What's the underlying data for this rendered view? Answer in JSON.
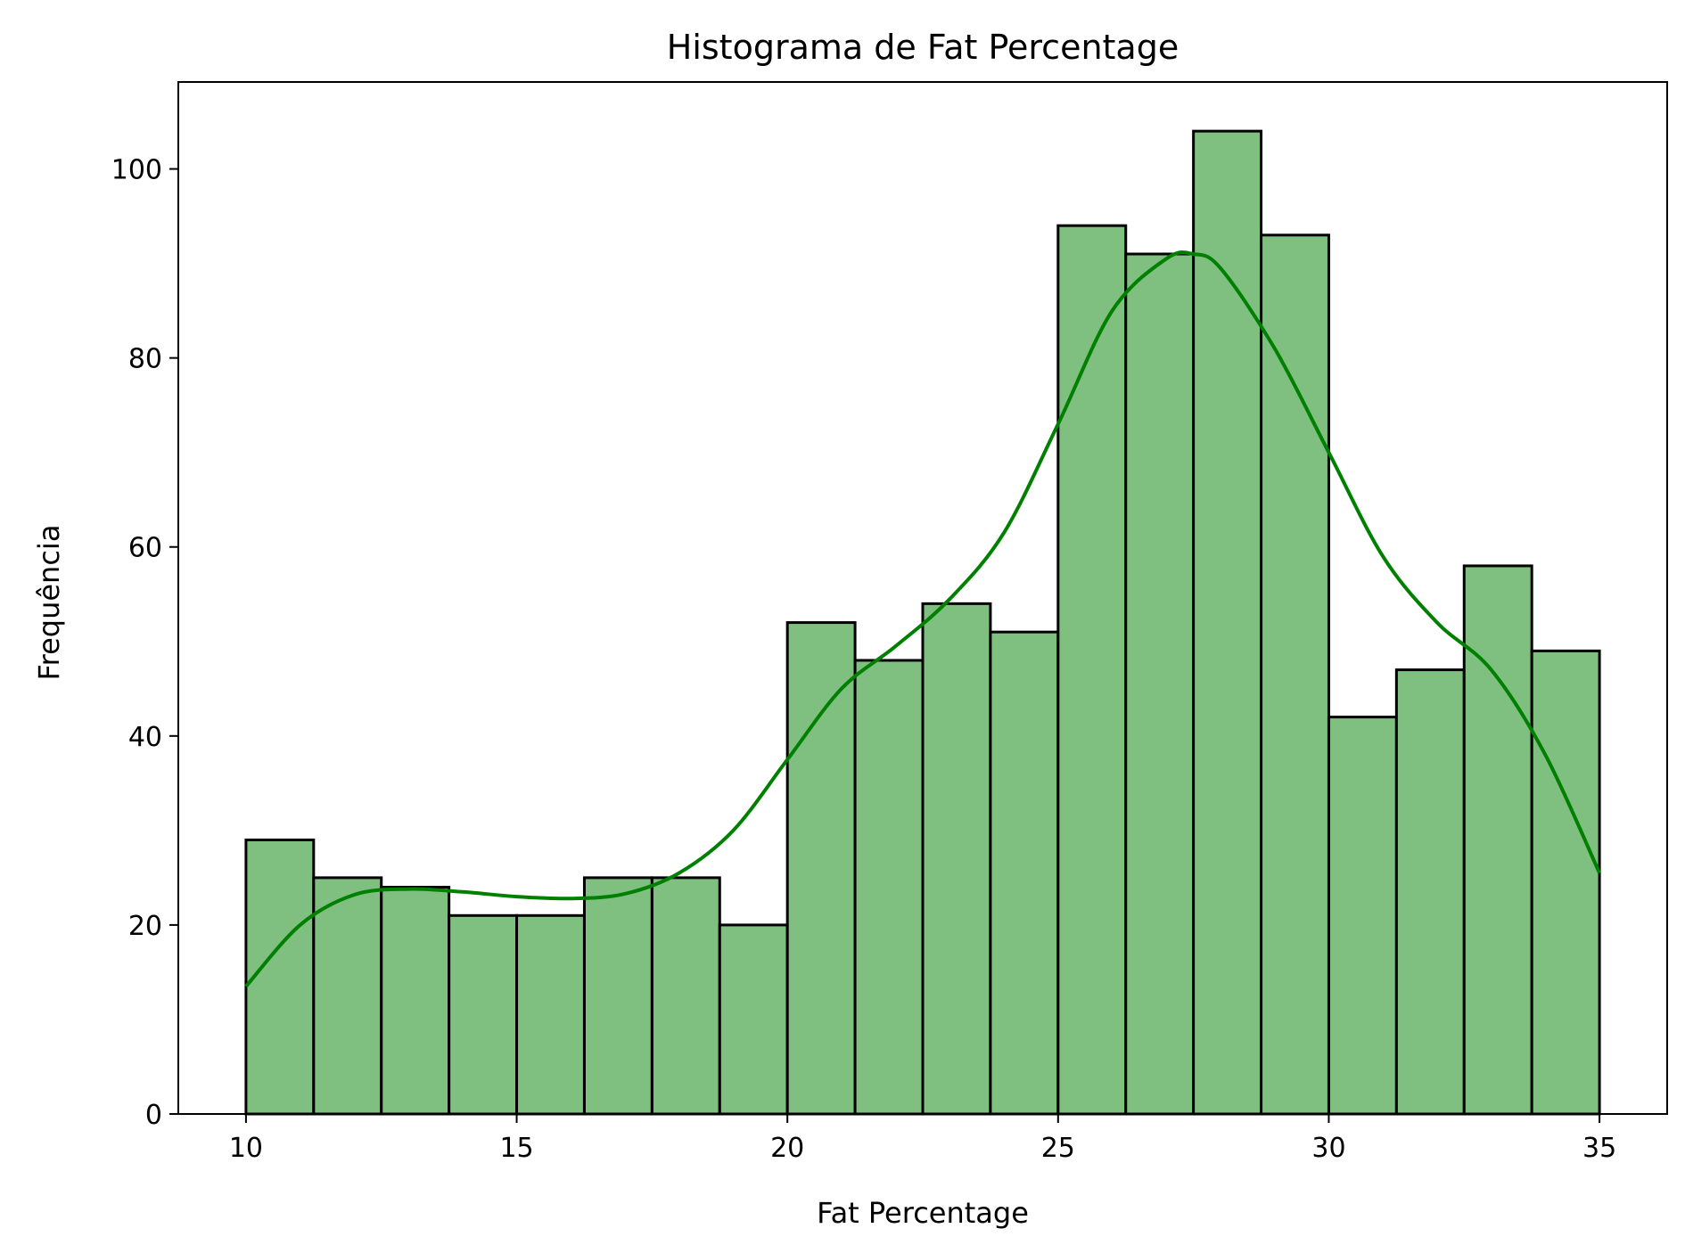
{
  "chart_data": {
    "type": "bar",
    "subtype": "histogram",
    "title": "Histograma de Fat Percentage",
    "xlabel": "Fat Percentage",
    "ylabel": "Frequência",
    "xlim": [
      8.75,
      36.25
    ],
    "ylim": [
      0,
      109.2
    ],
    "xticks": [
      10,
      15,
      20,
      25,
      30,
      35
    ],
    "yticks": [
      0,
      20,
      40,
      60,
      80,
      100
    ],
    "bin_edges": [
      10,
      11.25,
      12.5,
      13.75,
      15,
      16.25,
      17.5,
      18.75,
      20,
      21.25,
      22.5,
      23.75,
      25,
      26.25,
      27.5,
      28.75,
      30,
      31.25,
      32.5,
      33.75,
      35
    ],
    "values": [
      29,
      25,
      24,
      21,
      21,
      25,
      25,
      20,
      52,
      48,
      54,
      51,
      94,
      91,
      104,
      93,
      42,
      47,
      58,
      49
    ],
    "kde": {
      "x": [
        10,
        11,
        12,
        13,
        14,
        15,
        16,
        17,
        18,
        19,
        20,
        21,
        22,
        23,
        24,
        25,
        26,
        27,
        27.5,
        28,
        29,
        30,
        31,
        32,
        33,
        34,
        35
      ],
      "y": [
        13.5,
        20,
        23.2,
        23.8,
        23.5,
        23,
        22.8,
        23.3,
        25.5,
        30,
        37.5,
        45,
        49.5,
        54.5,
        61.5,
        73,
        85,
        90.5,
        91,
        89.5,
        81,
        70,
        59,
        52,
        47,
        38,
        25.5
      ]
    },
    "bar_color": "#7fbf7f",
    "edge_color": "#000000",
    "kde_color": "#008000",
    "grid": false
  }
}
